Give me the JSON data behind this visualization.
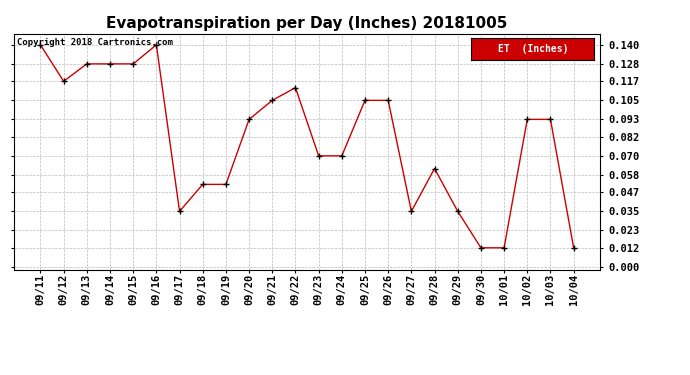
{
  "title": "Evapotranspiration per Day (Inches) 20181005",
  "copyright_text": "Copyright 2018 Cartronics.com",
  "legend_label": "ET  (Inches)",
  "x_labels": [
    "09/11",
    "09/12",
    "09/13",
    "09/14",
    "09/15",
    "09/16",
    "09/17",
    "09/18",
    "09/19",
    "09/20",
    "09/21",
    "09/22",
    "09/23",
    "09/24",
    "09/25",
    "09/26",
    "09/27",
    "09/28",
    "09/29",
    "09/30",
    "10/01",
    "10/02",
    "10/03",
    "10/04"
  ],
  "y_values": [
    0.14,
    0.117,
    0.128,
    0.128,
    0.128,
    0.14,
    0.035,
    0.052,
    0.052,
    0.093,
    0.105,
    0.113,
    0.07,
    0.07,
    0.105,
    0.105,
    0.035,
    0.062,
    0.035,
    0.012,
    0.012,
    0.093,
    0.093,
    0.012
  ],
  "ylim_min": -0.002,
  "ylim_max": 0.147,
  "yticks": [
    0.0,
    0.012,
    0.023,
    0.035,
    0.047,
    0.058,
    0.07,
    0.082,
    0.093,
    0.105,
    0.117,
    0.128,
    0.14
  ],
  "line_color": "#cc0000",
  "marker_color": "#000000",
  "legend_bg": "#cc0000",
  "legend_text_color": "#ffffff",
  "title_fontsize": 11,
  "copyright_fontsize": 6.5,
  "tick_fontsize": 7.5,
  "legend_fontsize": 7,
  "grid_color": "#bbbbbb",
  "bg_color": "#ffffff"
}
